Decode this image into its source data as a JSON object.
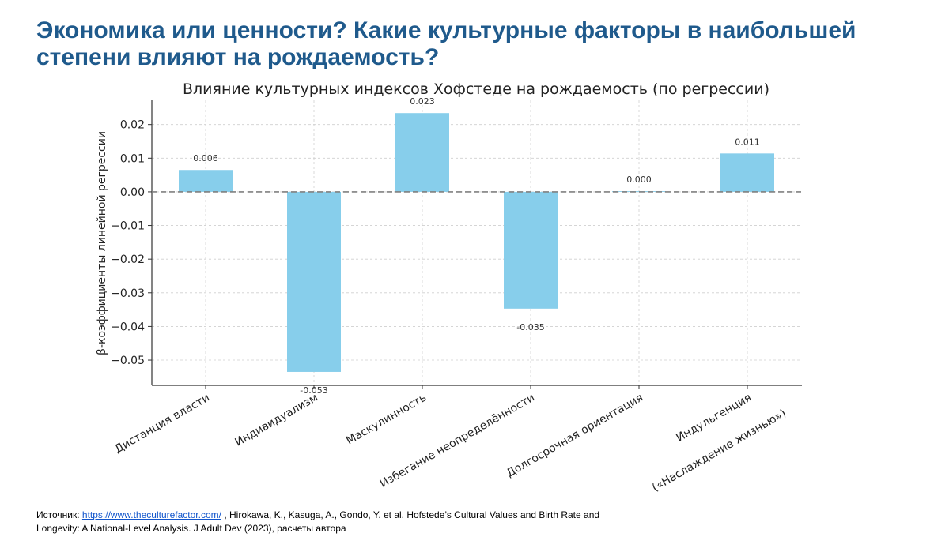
{
  "slide": {
    "title_line1": "Экономика или ценности? Какие культурные факторы в наибольшей",
    "title_line2": "степени влияют на рождаемость?"
  },
  "chart_data": {
    "type": "bar",
    "title": "Влияние культурных индексов Хофстеде на рождаемость (по регрессии)",
    "xlabel": "",
    "ylabel": "β-коэффициенты линейной регрессии",
    "categories": [
      "Дистанция власти",
      "Индивидуализм",
      "Маскулинность",
      "Избегание неопределённости",
      "Долгосрочная ориентация",
      "Индульгенция"
    ],
    "category_sublabels": [
      "",
      "",
      "",
      "",
      "",
      "(«Наслаждение жизнью»)"
    ],
    "values": [
      0.0065,
      -0.0535,
      0.0234,
      -0.0347,
      0.0002,
      0.0114
    ],
    "value_labels": [
      "0.006",
      "-0.053",
      "0.023",
      "-0.035",
      "0.000",
      "0.011"
    ],
    "ylim": [
      -0.0575,
      0.0272
    ],
    "yticks": [
      0.02,
      0.01,
      0.0,
      -0.01,
      -0.02,
      -0.03,
      -0.04,
      -0.05
    ],
    "ytick_labels": [
      "0.02",
      "0.01",
      "0.00",
      "−0.01",
      "−0.02",
      "−0.03",
      "−0.04",
      "−0.05"
    ],
    "grid": true,
    "zero_line": "dashed",
    "bar_color": "#87ceeb",
    "zero_line_color": "#808080"
  },
  "footer": {
    "source_label": "Источник:",
    "source_link": "https://www.theculturefactor.com/",
    "source_text": " , Hirokawa, K., Kasuga, A., Gondo, Y. et al. Hofstede’s Cultural Values and Birth Rate and",
    "source_text2": "Longevity: A National-Level Analysis. J Adult Dev (2023), расчеты автора"
  },
  "colors": {
    "title": "#1f5a8c",
    "link": "#1155cc"
  }
}
